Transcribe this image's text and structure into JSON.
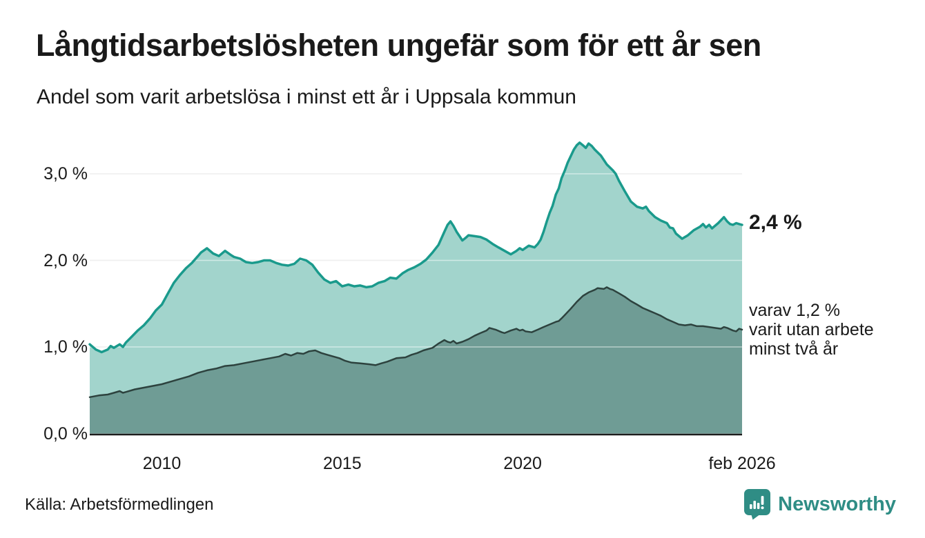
{
  "header": {
    "title": "Långtidsarbetslösheten ungefär som för ett år sen",
    "subtitle": "Andel som varit arbetslösa i minst ett år i Uppsala kommun"
  },
  "annotations": {
    "latest_total": "2,4 %",
    "subseries_note": "varav 1,2 %\nvarit utan arbete\nminst två år"
  },
  "footer": {
    "source": "Källa: Arbetsförmedlingen",
    "brand": "Newsworthy"
  },
  "colors": {
    "background": "#ffffff",
    "text": "#1a1a1a",
    "gridline": "#e0e0e0",
    "gridline_overlay": "rgba(255,255,255,0.5)",
    "axis_line": "#1c1c1c",
    "series1_line": "#1a9a8c",
    "series1_fill": "#a2d4cc",
    "series2_line": "#2d423e",
    "series2_fill": "#6f9c95",
    "brand_teal": "#2f8d85"
  },
  "chart_data": {
    "type": "area",
    "title": "Långtidsarbetslösheten ungefär som för ett år sen",
    "subtitle": "Andel som varit arbetslösa i minst ett år i Uppsala kommun",
    "xlabel": "",
    "ylabel": "",
    "grid": true,
    "legend_position": "right-annotations",
    "x_range": [
      2008.0,
      2026.083
    ],
    "ylim": [
      0,
      3.0
    ],
    "y_ticks": [
      {
        "value": 0,
        "label": "0,0 %"
      },
      {
        "value": 1,
        "label": "1,0 %"
      },
      {
        "value": 2,
        "label": "2,0 %"
      },
      {
        "value": 3,
        "label": "3,0 %"
      }
    ],
    "x_ticks": [
      {
        "value": 2010,
        "label": "2010"
      },
      {
        "value": 2015,
        "label": "2015"
      },
      {
        "value": 2020,
        "label": "2020"
      },
      {
        "value": 2026.083,
        "label": "feb 2026"
      }
    ],
    "series": [
      {
        "id": "minst-ett-ar",
        "name": "Andel arbetslösa minst ett år",
        "latest_value": 2.4,
        "line_color": "#1a9a8c",
        "fill_color": "#a2d4cc",
        "line_width": 3.5,
        "points": [
          [
            2008.0,
            1.03
          ],
          [
            2008.17,
            0.97
          ],
          [
            2008.33,
            0.94
          ],
          [
            2008.5,
            0.97
          ],
          [
            2008.58,
            1.01
          ],
          [
            2008.67,
            0.99
          ],
          [
            2008.83,
            1.03
          ],
          [
            2008.92,
            1.0
          ],
          [
            2009.0,
            1.05
          ],
          [
            2009.17,
            1.12
          ],
          [
            2009.33,
            1.19
          ],
          [
            2009.5,
            1.25
          ],
          [
            2009.67,
            1.33
          ],
          [
            2009.83,
            1.42
          ],
          [
            2010.0,
            1.49
          ],
          [
            2010.17,
            1.62
          ],
          [
            2010.33,
            1.74
          ],
          [
            2010.5,
            1.83
          ],
          [
            2010.67,
            1.91
          ],
          [
            2010.83,
            1.97
          ],
          [
            2011.0,
            2.05
          ],
          [
            2011.08,
            2.09
          ],
          [
            2011.25,
            2.14
          ],
          [
            2011.42,
            2.08
          ],
          [
            2011.58,
            2.05
          ],
          [
            2011.75,
            2.11
          ],
          [
            2011.92,
            2.06
          ],
          [
            2012.0,
            2.04
          ],
          [
            2012.17,
            2.02
          ],
          [
            2012.33,
            1.98
          ],
          [
            2012.5,
            1.97
          ],
          [
            2012.67,
            1.98
          ],
          [
            2012.83,
            2.0
          ],
          [
            2013.0,
            2.0
          ],
          [
            2013.17,
            1.97
          ],
          [
            2013.33,
            1.95
          ],
          [
            2013.5,
            1.94
          ],
          [
            2013.67,
            1.96
          ],
          [
            2013.83,
            2.02
          ],
          [
            2014.0,
            2.0
          ],
          [
            2014.17,
            1.95
          ],
          [
            2014.33,
            1.86
          ],
          [
            2014.5,
            1.78
          ],
          [
            2014.67,
            1.74
          ],
          [
            2014.83,
            1.76
          ],
          [
            2015.0,
            1.7
          ],
          [
            2015.17,
            1.72
          ],
          [
            2015.33,
            1.7
          ],
          [
            2015.5,
            1.71
          ],
          [
            2015.67,
            1.69
          ],
          [
            2015.83,
            1.7
          ],
          [
            2016.0,
            1.74
          ],
          [
            2016.17,
            1.76
          ],
          [
            2016.33,
            1.8
          ],
          [
            2016.5,
            1.79
          ],
          [
            2016.67,
            1.85
          ],
          [
            2016.83,
            1.89
          ],
          [
            2017.0,
            1.92
          ],
          [
            2017.17,
            1.96
          ],
          [
            2017.33,
            2.01
          ],
          [
            2017.5,
            2.09
          ],
          [
            2017.67,
            2.18
          ],
          [
            2017.83,
            2.33
          ],
          [
            2017.92,
            2.41
          ],
          [
            2018.0,
            2.45
          ],
          [
            2018.08,
            2.4
          ],
          [
            2018.17,
            2.33
          ],
          [
            2018.25,
            2.28
          ],
          [
            2018.33,
            2.23
          ],
          [
            2018.42,
            2.26
          ],
          [
            2018.5,
            2.29
          ],
          [
            2018.67,
            2.28
          ],
          [
            2018.83,
            2.27
          ],
          [
            2019.0,
            2.24
          ],
          [
            2019.17,
            2.19
          ],
          [
            2019.33,
            2.15
          ],
          [
            2019.5,
            2.11
          ],
          [
            2019.67,
            2.07
          ],
          [
            2019.83,
            2.11
          ],
          [
            2019.92,
            2.14
          ],
          [
            2020.0,
            2.12
          ],
          [
            2020.17,
            2.17
          ],
          [
            2020.33,
            2.15
          ],
          [
            2020.42,
            2.19
          ],
          [
            2020.5,
            2.24
          ],
          [
            2020.58,
            2.33
          ],
          [
            2020.67,
            2.45
          ],
          [
            2020.75,
            2.55
          ],
          [
            2020.83,
            2.63
          ],
          [
            2020.92,
            2.76
          ],
          [
            2021.0,
            2.83
          ],
          [
            2021.08,
            2.95
          ],
          [
            2021.17,
            3.04
          ],
          [
            2021.25,
            3.13
          ],
          [
            2021.33,
            3.2
          ],
          [
            2021.42,
            3.28
          ],
          [
            2021.5,
            3.33
          ],
          [
            2021.58,
            3.36
          ],
          [
            2021.67,
            3.33
          ],
          [
            2021.75,
            3.3
          ],
          [
            2021.83,
            3.35
          ],
          [
            2021.92,
            3.32
          ],
          [
            2022.0,
            3.28
          ],
          [
            2022.17,
            3.21
          ],
          [
            2022.33,
            3.11
          ],
          [
            2022.5,
            3.04
          ],
          [
            2022.58,
            3.0
          ],
          [
            2022.67,
            2.92
          ],
          [
            2022.83,
            2.8
          ],
          [
            2023.0,
            2.68
          ],
          [
            2023.17,
            2.62
          ],
          [
            2023.33,
            2.6
          ],
          [
            2023.42,
            2.62
          ],
          [
            2023.5,
            2.57
          ],
          [
            2023.67,
            2.5
          ],
          [
            2023.83,
            2.46
          ],
          [
            2024.0,
            2.43
          ],
          [
            2024.08,
            2.38
          ],
          [
            2024.17,
            2.37
          ],
          [
            2024.25,
            2.31
          ],
          [
            2024.42,
            2.25
          ],
          [
            2024.58,
            2.29
          ],
          [
            2024.75,
            2.35
          ],
          [
            2024.92,
            2.39
          ],
          [
            2025.0,
            2.42
          ],
          [
            2025.08,
            2.38
          ],
          [
            2025.17,
            2.41
          ],
          [
            2025.25,
            2.37
          ],
          [
            2025.42,
            2.43
          ],
          [
            2025.58,
            2.5
          ],
          [
            2025.67,
            2.45
          ],
          [
            2025.75,
            2.42
          ],
          [
            2025.83,
            2.41
          ],
          [
            2025.92,
            2.43
          ],
          [
            2026.0,
            2.42
          ],
          [
            2026.083,
            2.41
          ]
        ]
      },
      {
        "id": "minst-tva-ar",
        "name": "varav utan arbete minst två år",
        "latest_value": 1.2,
        "line_color": "#2d423e",
        "fill_color": "#6f9c95",
        "line_width": 2.5,
        "points": [
          [
            2008.0,
            0.42
          ],
          [
            2008.25,
            0.44
          ],
          [
            2008.5,
            0.45
          ],
          [
            2008.67,
            0.47
          ],
          [
            2008.83,
            0.49
          ],
          [
            2008.92,
            0.47
          ],
          [
            2009.0,
            0.48
          ],
          [
            2009.25,
            0.51
          ],
          [
            2009.5,
            0.53
          ],
          [
            2009.75,
            0.55
          ],
          [
            2010.0,
            0.57
          ],
          [
            2010.25,
            0.6
          ],
          [
            2010.5,
            0.63
          ],
          [
            2010.75,
            0.66
          ],
          [
            2011.0,
            0.7
          ],
          [
            2011.25,
            0.73
          ],
          [
            2011.5,
            0.75
          ],
          [
            2011.75,
            0.78
          ],
          [
            2012.0,
            0.79
          ],
          [
            2012.25,
            0.81
          ],
          [
            2012.5,
            0.83
          ],
          [
            2012.75,
            0.85
          ],
          [
            2013.0,
            0.87
          ],
          [
            2013.25,
            0.89
          ],
          [
            2013.42,
            0.92
          ],
          [
            2013.58,
            0.9
          ],
          [
            2013.75,
            0.93
          ],
          [
            2013.92,
            0.92
          ],
          [
            2014.08,
            0.95
          ],
          [
            2014.25,
            0.96
          ],
          [
            2014.42,
            0.93
          ],
          [
            2014.58,
            0.91
          ],
          [
            2014.75,
            0.89
          ],
          [
            2014.92,
            0.87
          ],
          [
            2015.08,
            0.84
          ],
          [
            2015.25,
            0.82
          ],
          [
            2015.5,
            0.81
          ],
          [
            2015.75,
            0.8
          ],
          [
            2015.92,
            0.79
          ],
          [
            2016.08,
            0.81
          ],
          [
            2016.25,
            0.83
          ],
          [
            2016.5,
            0.87
          ],
          [
            2016.75,
            0.88
          ],
          [
            2016.92,
            0.91
          ],
          [
            2017.08,
            0.93
          ],
          [
            2017.25,
            0.96
          ],
          [
            2017.5,
            0.99
          ],
          [
            2017.67,
            1.04
          ],
          [
            2017.83,
            1.08
          ],
          [
            2017.92,
            1.06
          ],
          [
            2018.0,
            1.05
          ],
          [
            2018.08,
            1.07
          ],
          [
            2018.17,
            1.04
          ],
          [
            2018.33,
            1.06
          ],
          [
            2018.5,
            1.09
          ],
          [
            2018.67,
            1.13
          ],
          [
            2018.83,
            1.16
          ],
          [
            2019.0,
            1.19
          ],
          [
            2019.08,
            1.22
          ],
          [
            2019.25,
            1.2
          ],
          [
            2019.42,
            1.17
          ],
          [
            2019.5,
            1.16
          ],
          [
            2019.67,
            1.19
          ],
          [
            2019.83,
            1.21
          ],
          [
            2019.92,
            1.19
          ],
          [
            2020.0,
            1.2
          ],
          [
            2020.08,
            1.18
          ],
          [
            2020.25,
            1.17
          ],
          [
            2020.42,
            1.2
          ],
          [
            2020.58,
            1.23
          ],
          [
            2020.75,
            1.26
          ],
          [
            2020.92,
            1.29
          ],
          [
            2021.0,
            1.3
          ],
          [
            2021.08,
            1.33
          ],
          [
            2021.17,
            1.37
          ],
          [
            2021.33,
            1.44
          ],
          [
            2021.5,
            1.52
          ],
          [
            2021.67,
            1.59
          ],
          [
            2021.83,
            1.63
          ],
          [
            2022.0,
            1.66
          ],
          [
            2022.08,
            1.68
          ],
          [
            2022.25,
            1.67
          ],
          [
            2022.33,
            1.69
          ],
          [
            2022.42,
            1.67
          ],
          [
            2022.5,
            1.66
          ],
          [
            2022.67,
            1.62
          ],
          [
            2022.83,
            1.58
          ],
          [
            2023.0,
            1.53
          ],
          [
            2023.17,
            1.49
          ],
          [
            2023.33,
            1.45
          ],
          [
            2023.5,
            1.42
          ],
          [
            2023.67,
            1.39
          ],
          [
            2023.83,
            1.36
          ],
          [
            2024.0,
            1.32
          ],
          [
            2024.17,
            1.29
          ],
          [
            2024.33,
            1.26
          ],
          [
            2024.5,
            1.25
          ],
          [
            2024.67,
            1.26
          ],
          [
            2024.83,
            1.24
          ],
          [
            2025.0,
            1.24
          ],
          [
            2025.17,
            1.23
          ],
          [
            2025.33,
            1.22
          ],
          [
            2025.5,
            1.21
          ],
          [
            2025.58,
            1.23
          ],
          [
            2025.67,
            1.22
          ],
          [
            2025.83,
            1.19
          ],
          [
            2025.92,
            1.18
          ],
          [
            2026.0,
            1.21
          ],
          [
            2026.083,
            1.2
          ]
        ]
      }
    ]
  }
}
